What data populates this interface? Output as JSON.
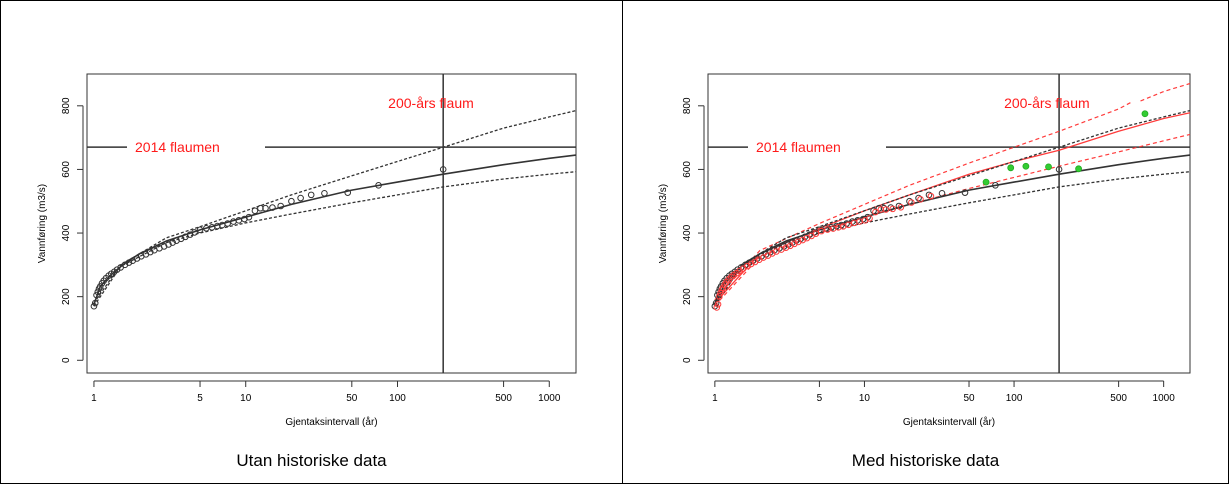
{
  "panels": [
    {
      "caption": "Utan historiske data",
      "chart_data": {
        "type": "scatter",
        "xlabel": "Gjentaksintervall (år)",
        "ylabel": "Vannføring (m3/s)",
        "x_scale": "log",
        "xlim": [
          0.9,
          1500
        ],
        "ylim": [
          -40,
          900
        ],
        "x_ticks": [
          1,
          5,
          10,
          50,
          100,
          500,
          1000
        ],
        "y_ticks": [
          0,
          200,
          400,
          600,
          800
        ],
        "annotations": [
          {
            "text": "2014 flaumen",
            "value": 670
          },
          {
            "text": "200-års flaum",
            "value": 200
          }
        ],
        "reference_lines": {
          "hline": 670,
          "vline": 200
        },
        "fit_central": [
          [
            1,
            175
          ],
          [
            1.1,
            232
          ],
          [
            1.3,
            270
          ],
          [
            1.6,
            305
          ],
          [
            2,
            335
          ],
          [
            3,
            375
          ],
          [
            5,
            410
          ],
          [
            10,
            450
          ],
          [
            20,
            490
          ],
          [
            50,
            535
          ],
          [
            100,
            560
          ],
          [
            200,
            585
          ],
          [
            500,
            615
          ],
          [
            1000,
            635
          ],
          [
            1500,
            645
          ]
        ],
        "ci_upper": [
          [
            1,
            180
          ],
          [
            1.5,
            300
          ],
          [
            3,
            385
          ],
          [
            5,
            420
          ],
          [
            10,
            470
          ],
          [
            20,
            520
          ],
          [
            50,
            580
          ],
          [
            100,
            625
          ],
          [
            200,
            670
          ],
          [
            500,
            730
          ],
          [
            1000,
            765
          ],
          [
            1500,
            785
          ]
        ],
        "ci_lower": [
          [
            1,
            170
          ],
          [
            1.5,
            295
          ],
          [
            3,
            370
          ],
          [
            5,
            400
          ],
          [
            10,
            432
          ],
          [
            20,
            460
          ],
          [
            50,
            495
          ],
          [
            100,
            520
          ],
          [
            200,
            545
          ],
          [
            500,
            570
          ],
          [
            1000,
            585
          ],
          [
            1500,
            593
          ]
        ],
        "observed": [
          [
            1.0,
            170
          ],
          [
            1.02,
            180
          ],
          [
            1.04,
            205
          ],
          [
            1.06,
            215
          ],
          [
            1.08,
            225
          ],
          [
            1.1,
            232
          ],
          [
            1.13,
            242
          ],
          [
            1.16,
            250
          ],
          [
            1.2,
            258
          ],
          [
            1.25,
            266
          ],
          [
            1.3,
            272
          ],
          [
            1.36,
            278
          ],
          [
            1.42,
            285
          ],
          [
            1.5,
            292
          ],
          [
            1.6,
            300
          ],
          [
            1.7,
            307
          ],
          [
            1.8,
            313
          ],
          [
            1.92,
            320
          ],
          [
            2.05,
            327
          ],
          [
            2.2,
            333
          ],
          [
            2.35,
            340
          ],
          [
            2.5,
            346
          ],
          [
            2.7,
            352
          ],
          [
            2.9,
            358
          ],
          [
            3.1,
            364
          ],
          [
            3.3,
            370
          ],
          [
            3.5,
            376
          ],
          [
            3.75,
            382
          ],
          [
            4.0,
            388
          ],
          [
            4.3,
            395
          ],
          [
            4.6,
            402
          ],
          [
            5.0,
            410
          ],
          [
            5.5,
            415
          ],
          [
            6.0,
            418
          ],
          [
            6.5,
            422
          ],
          [
            7.0,
            425
          ],
          [
            7.6,
            430
          ],
          [
            8.3,
            436
          ],
          [
            9.0,
            440
          ],
          [
            9.8,
            444
          ],
          [
            10.5,
            450
          ],
          [
            11.5,
            470
          ],
          [
            12.5,
            478
          ],
          [
            13.5,
            478
          ],
          [
            15,
            480
          ],
          [
            17,
            485
          ],
          [
            20,
            500
          ],
          [
            23,
            510
          ],
          [
            27,
            520
          ],
          [
            33,
            525
          ],
          [
            47,
            527
          ],
          [
            75,
            550
          ],
          [
            200,
            600
          ]
        ],
        "historic": []
      }
    },
    {
      "caption": "Med historiske data",
      "chart_data": {
        "type": "scatter",
        "xlabel": "Gjentaksintervall (år)",
        "ylabel": "Vannføring (m3/s)",
        "x_scale": "log",
        "xlim": [
          0.9,
          1500
        ],
        "ylim": [
          -40,
          900
        ],
        "x_ticks": [
          1,
          5,
          10,
          50,
          100,
          500,
          1000
        ],
        "y_ticks": [
          0,
          200,
          400,
          600,
          800
        ],
        "annotations": [
          {
            "text": "2014 flaumen",
            "value": 670
          },
          {
            "text": "200-års flaum",
            "value": 200
          }
        ],
        "reference_lines": {
          "hline": 670,
          "vline": 200
        },
        "fit_central": [
          [
            1,
            175
          ],
          [
            1.1,
            232
          ],
          [
            1.3,
            270
          ],
          [
            1.6,
            305
          ],
          [
            2,
            335
          ],
          [
            3,
            375
          ],
          [
            5,
            410
          ],
          [
            10,
            450
          ],
          [
            20,
            490
          ],
          [
            50,
            535
          ],
          [
            100,
            560
          ],
          [
            200,
            585
          ],
          [
            500,
            615
          ],
          [
            1000,
            635
          ],
          [
            1500,
            645
          ]
        ],
        "ci_upper": [
          [
            1,
            180
          ],
          [
            1.5,
            300
          ],
          [
            3,
            385
          ],
          [
            5,
            420
          ],
          [
            10,
            470
          ],
          [
            20,
            520
          ],
          [
            50,
            580
          ],
          [
            100,
            625
          ],
          [
            200,
            670
          ],
          [
            500,
            730
          ],
          [
            1000,
            765
          ],
          [
            1500,
            785
          ]
        ],
        "ci_lower": [
          [
            1,
            170
          ],
          [
            1.5,
            295
          ],
          [
            3,
            370
          ],
          [
            5,
            400
          ],
          [
            10,
            432
          ],
          [
            20,
            460
          ],
          [
            50,
            495
          ],
          [
            100,
            520
          ],
          [
            200,
            545
          ],
          [
            500,
            570
          ],
          [
            1000,
            585
          ],
          [
            1500,
            593
          ]
        ],
        "fit_historic": [
          [
            1,
            180
          ],
          [
            2,
            335
          ],
          [
            5,
            415
          ],
          [
            10,
            470
          ],
          [
            20,
            520
          ],
          [
            50,
            585
          ],
          [
            100,
            625
          ],
          [
            200,
            660
          ],
          [
            500,
            720
          ],
          [
            1000,
            760
          ],
          [
            1500,
            778
          ]
        ],
        "ci_historic_upper": [
          [
            1,
            190
          ],
          [
            2,
            345
          ],
          [
            5,
            430
          ],
          [
            10,
            490
          ],
          [
            20,
            550
          ],
          [
            50,
            620
          ],
          [
            100,
            670
          ],
          [
            200,
            720
          ],
          [
            500,
            790
          ],
          [
            600,
            810
          ]
        ],
        "ci_historic_upper2": [
          [
            700,
            815
          ],
          [
            1000,
            845
          ],
          [
            1500,
            870
          ]
        ],
        "ci_historic_lower": [
          [
            1,
            172
          ],
          [
            2,
            325
          ],
          [
            5,
            400
          ],
          [
            10,
            450
          ],
          [
            20,
            490
          ],
          [
            50,
            540
          ],
          [
            100,
            575
          ],
          [
            200,
            610
          ],
          [
            500,
            655
          ],
          [
            1000,
            690
          ],
          [
            1500,
            710
          ]
        ],
        "observed": [
          [
            1.0,
            170
          ],
          [
            1.02,
            180
          ],
          [
            1.04,
            205
          ],
          [
            1.06,
            215
          ],
          [
            1.08,
            225
          ],
          [
            1.1,
            232
          ],
          [
            1.13,
            242
          ],
          [
            1.16,
            250
          ],
          [
            1.2,
            258
          ],
          [
            1.25,
            266
          ],
          [
            1.3,
            272
          ],
          [
            1.36,
            278
          ],
          [
            1.42,
            285
          ],
          [
            1.5,
            292
          ],
          [
            1.6,
            300
          ],
          [
            1.7,
            307
          ],
          [
            1.8,
            313
          ],
          [
            1.92,
            320
          ],
          [
            2.05,
            327
          ],
          [
            2.2,
            333
          ],
          [
            2.35,
            340
          ],
          [
            2.5,
            346
          ],
          [
            2.7,
            352
          ],
          [
            2.9,
            358
          ],
          [
            3.1,
            364
          ],
          [
            3.3,
            370
          ],
          [
            3.5,
            376
          ],
          [
            3.75,
            382
          ],
          [
            4.0,
            388
          ],
          [
            4.3,
            395
          ],
          [
            4.6,
            402
          ],
          [
            5.0,
            410
          ],
          [
            5.5,
            415
          ],
          [
            6.0,
            418
          ],
          [
            6.5,
            422
          ],
          [
            7.0,
            425
          ],
          [
            7.6,
            430
          ],
          [
            8.3,
            436
          ],
          [
            9.0,
            440
          ],
          [
            9.8,
            444
          ],
          [
            10.5,
            450
          ],
          [
            11.5,
            470
          ],
          [
            12.5,
            478
          ],
          [
            13.5,
            478
          ],
          [
            15,
            480
          ],
          [
            17,
            485
          ],
          [
            20,
            500
          ],
          [
            23,
            510
          ],
          [
            27,
            520
          ],
          [
            33,
            525
          ],
          [
            47,
            527
          ],
          [
            75,
            550
          ],
          [
            200,
            600
          ]
        ],
        "historic": [
          [
            65,
            560
          ],
          [
            95,
            605
          ],
          [
            120,
            610
          ],
          [
            170,
            608
          ],
          [
            270,
            602
          ],
          [
            750,
            775
          ]
        ]
      }
    }
  ]
}
